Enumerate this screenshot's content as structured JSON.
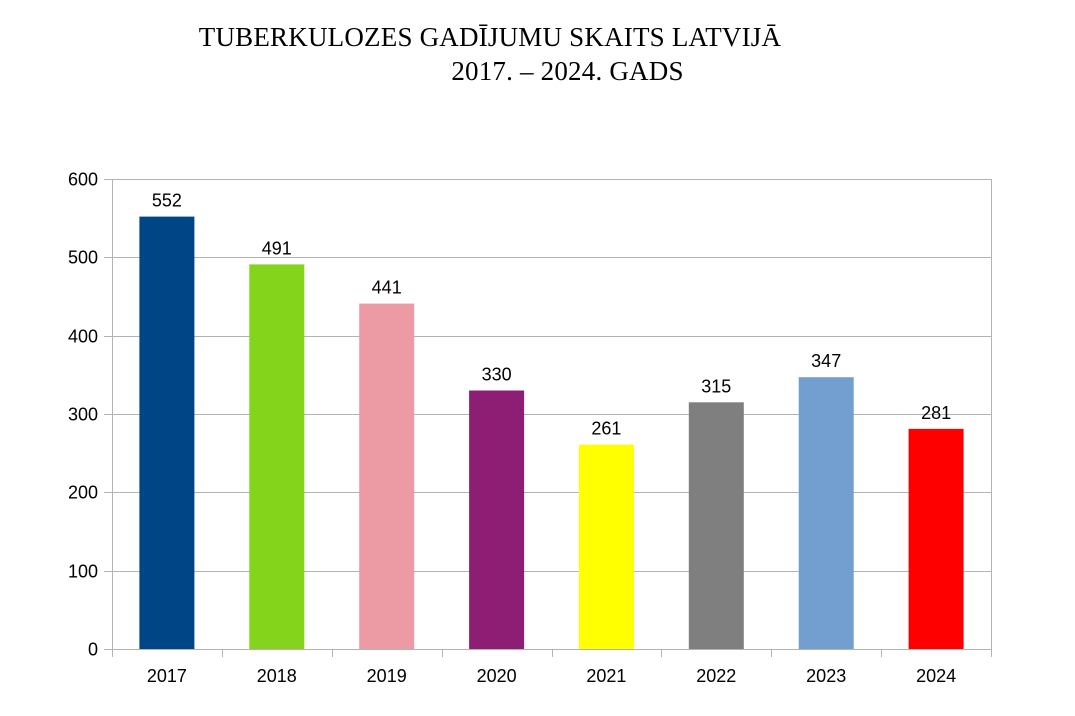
{
  "chart_data": {
    "type": "bar",
    "title_lines": [
      "TUBERKULOZES GADĪJUMU SKAITS LATVIJĀ",
      "2017. – 2024. GADS"
    ],
    "categories": [
      "2017",
      "2018",
      "2019",
      "2020",
      "2021",
      "2022",
      "2023",
      "2024"
    ],
    "values": [
      552,
      491,
      441,
      330,
      261,
      315,
      347,
      281
    ],
    "bar_colors": [
      "#004586",
      "#83d41a",
      "#ec9ba4",
      "#8d1e73",
      "#ffff00",
      "#7f7f7f",
      "#729fcf",
      "#ff0000"
    ],
    "ylim": [
      0,
      600
    ],
    "yticks": [
      0,
      100,
      200,
      300,
      400,
      500,
      600
    ],
    "xlabel": "",
    "ylabel": "",
    "grid": true,
    "data_labels": true,
    "legend": "none"
  }
}
